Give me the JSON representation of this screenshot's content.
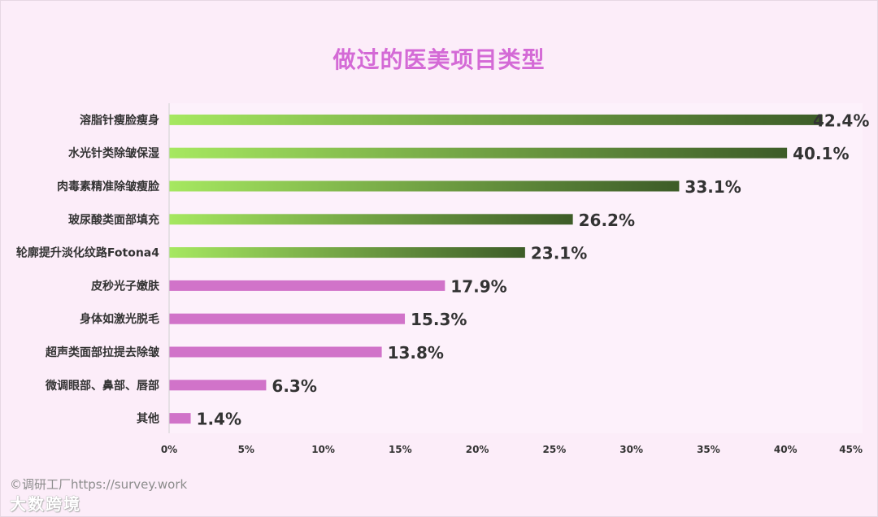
{
  "title": "做过的医美项目类型",
  "credit": "©调研工厂https://survey.work",
  "watermark": "大数跨境",
  "colors": {
    "title": "#d46ad6",
    "green_start": "#a6e860",
    "green_end": "#3d5c28",
    "pink": "#d173c9"
  },
  "chart_data": {
    "type": "bar",
    "orientation": "horizontal",
    "title": "做过的医美项目类型",
    "xlim": [
      0,
      45
    ],
    "x_ticks": [
      "0%",
      "5%",
      "10%",
      "15%",
      "20%",
      "25%",
      "30%",
      "35%",
      "40%",
      "45%"
    ],
    "grid": false,
    "categories": [
      "溶脂针瘦脸瘦身",
      "水光针类除皱保湿",
      "肉毒素精准除皱瘦脸",
      "玻尿酸类面部填充",
      "轮廓提升淡化纹路Fotona4",
      "皮秒光子嫩肤",
      "身体如激光脱毛",
      "超声类面部拉提去除皱",
      "微调眼部、鼻部、唇部",
      "其他"
    ],
    "values": [
      42.4,
      40.1,
      33.1,
      26.2,
      23.1,
      17.9,
      15.3,
      13.8,
      6.3,
      1.4
    ],
    "value_labels": [
      "42.4%",
      "40.1%",
      "33.1%",
      "26.2%",
      "23.1%",
      "17.9%",
      "15.3%",
      "13.8%",
      "6.3%",
      "1.4%"
    ],
    "bar_styles": [
      "green-gradient",
      "green-gradient",
      "green-gradient",
      "green-gradient",
      "green-gradient",
      "pink",
      "pink",
      "pink",
      "pink",
      "pink"
    ]
  }
}
